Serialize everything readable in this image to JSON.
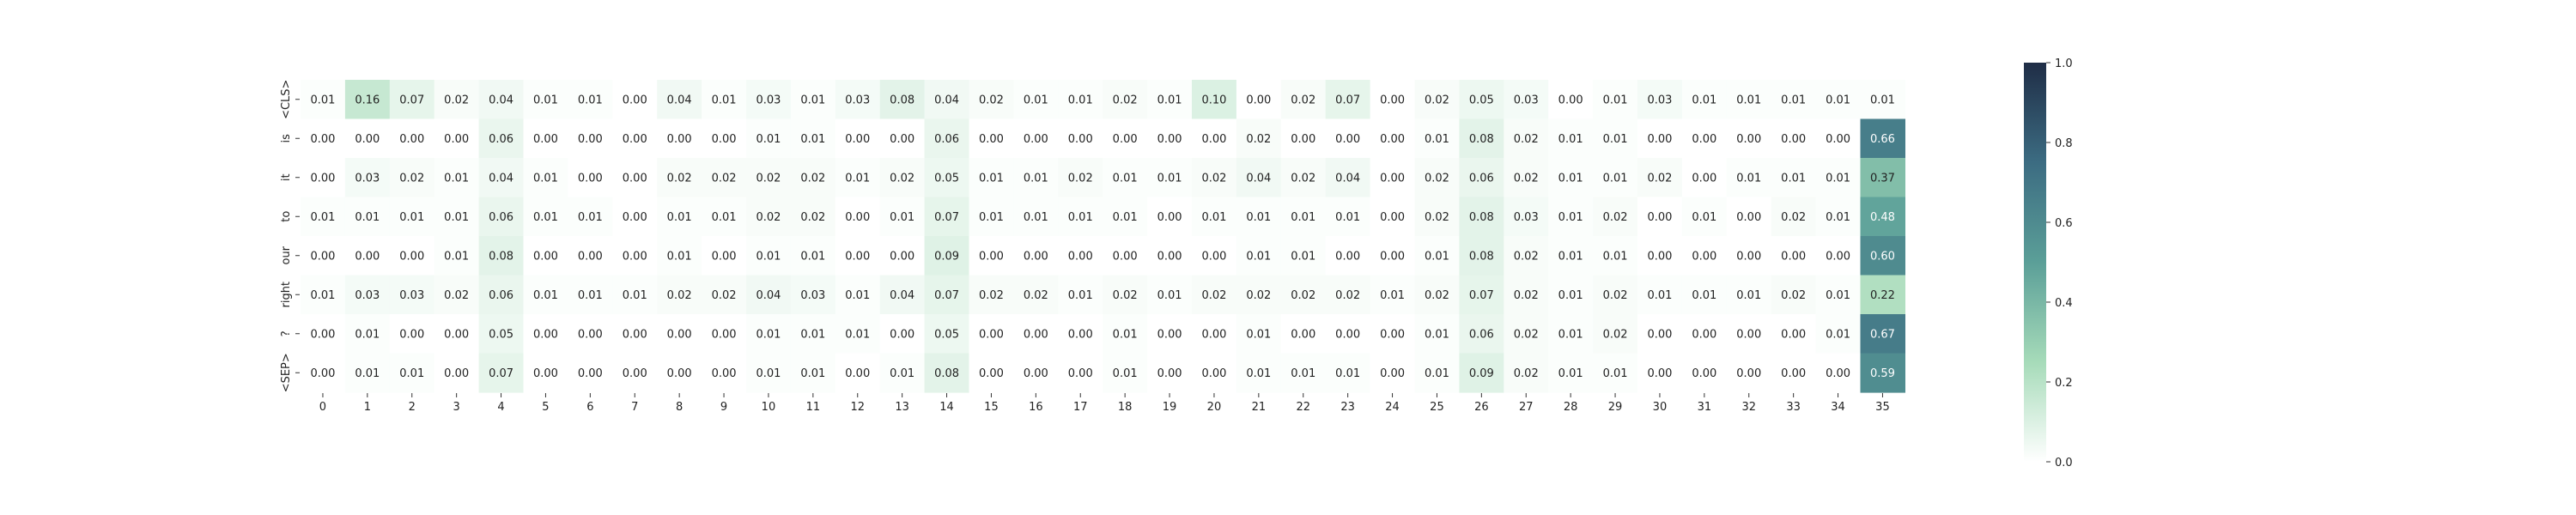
{
  "chart_data": {
    "type": "heatmap",
    "title": "",
    "xlabel": "",
    "ylabel": "",
    "x_labels": [
      "0",
      "1",
      "2",
      "3",
      "4",
      "5",
      "6",
      "7",
      "8",
      "9",
      "10",
      "11",
      "12",
      "13",
      "14",
      "15",
      "16",
      "17",
      "18",
      "19",
      "20",
      "21",
      "22",
      "23",
      "24",
      "25",
      "26",
      "27",
      "28",
      "29",
      "30",
      "31",
      "32",
      "33",
      "34",
      "35"
    ],
    "y_labels": [
      "<CLS>",
      "is",
      "it",
      "to",
      "our",
      "right",
      "?",
      "<SEP>"
    ],
    "values": [
      [
        0.01,
        0.16,
        0.07,
        0.02,
        0.04,
        0.01,
        0.01,
        0.0,
        0.04,
        0.01,
        0.03,
        0.01,
        0.03,
        0.08,
        0.04,
        0.02,
        0.01,
        0.01,
        0.02,
        0.01,
        0.1,
        0.0,
        0.02,
        0.07,
        0.0,
        0.02,
        0.05,
        0.03,
        0.0,
        0.01,
        0.03,
        0.01,
        0.01,
        0.01,
        0.01,
        0.01
      ],
      [
        0.0,
        0.0,
        0.0,
        0.0,
        0.06,
        0.0,
        0.0,
        0.0,
        0.0,
        0.0,
        0.01,
        0.01,
        0.0,
        0.0,
        0.06,
        0.0,
        0.0,
        0.0,
        0.0,
        0.0,
        0.0,
        0.02,
        0.0,
        0.0,
        0.0,
        0.01,
        0.08,
        0.02,
        0.01,
        0.01,
        0.0,
        0.0,
        0.0,
        0.0,
        0.0,
        0.66
      ],
      [
        0.0,
        0.03,
        0.02,
        0.01,
        0.04,
        0.01,
        0.0,
        0.0,
        0.02,
        0.02,
        0.02,
        0.02,
        0.01,
        0.02,
        0.05,
        0.01,
        0.01,
        0.02,
        0.01,
        0.01,
        0.02,
        0.04,
        0.02,
        0.04,
        0.0,
        0.02,
        0.06,
        0.02,
        0.01,
        0.01,
        0.02,
        0.0,
        0.01,
        0.01,
        0.01,
        0.37
      ],
      [
        0.01,
        0.01,
        0.01,
        0.01,
        0.06,
        0.01,
        0.01,
        0.0,
        0.01,
        0.01,
        0.02,
        0.02,
        0.0,
        0.01,
        0.07,
        0.01,
        0.01,
        0.01,
        0.01,
        0.0,
        0.01,
        0.01,
        0.01,
        0.01,
        0.0,
        0.02,
        0.08,
        0.03,
        0.01,
        0.02,
        0.0,
        0.01,
        0.0,
        0.02,
        0.01,
        0.48
      ],
      [
        0.0,
        0.0,
        0.0,
        0.01,
        0.08,
        0.0,
        0.0,
        0.0,
        0.01,
        0.0,
        0.01,
        0.01,
        0.0,
        0.0,
        0.09,
        0.0,
        0.0,
        0.0,
        0.0,
        0.0,
        0.0,
        0.01,
        0.01,
        0.0,
        0.0,
        0.01,
        0.08,
        0.02,
        0.01,
        0.01,
        0.0,
        0.0,
        0.0,
        0.0,
        0.0,
        0.6
      ],
      [
        0.01,
        0.03,
        0.03,
        0.02,
        0.06,
        0.01,
        0.01,
        0.01,
        0.02,
        0.02,
        0.04,
        0.03,
        0.01,
        0.04,
        0.07,
        0.02,
        0.02,
        0.01,
        0.02,
        0.01,
        0.02,
        0.02,
        0.02,
        0.02,
        0.01,
        0.02,
        0.07,
        0.02,
        0.01,
        0.02,
        0.01,
        0.01,
        0.01,
        0.02,
        0.01,
        0.22
      ],
      [
        0.0,
        0.01,
        0.0,
        0.0,
        0.05,
        0.0,
        0.0,
        0.0,
        0.0,
        0.0,
        0.01,
        0.01,
        0.01,
        0.0,
        0.05,
        0.0,
        0.0,
        0.0,
        0.01,
        0.0,
        0.0,
        0.01,
        0.0,
        0.0,
        0.0,
        0.01,
        0.06,
        0.02,
        0.01,
        0.02,
        0.0,
        0.0,
        0.0,
        0.0,
        0.01,
        0.67
      ],
      [
        0.0,
        0.01,
        0.01,
        0.0,
        0.07,
        0.0,
        0.0,
        0.0,
        0.0,
        0.0,
        0.01,
        0.01,
        0.0,
        0.01,
        0.08,
        0.0,
        0.0,
        0.0,
        0.01,
        0.0,
        0.0,
        0.01,
        0.01,
        0.01,
        0.0,
        0.01,
        0.09,
        0.02,
        0.01,
        0.01,
        0.0,
        0.0,
        0.0,
        0.0,
        0.0,
        0.59
      ]
    ],
    "value_format": "0.00",
    "colorbar": {
      "range": [
        0.0,
        1.0
      ],
      "ticks": [
        "0.0",
        "0.2",
        "0.4",
        "0.6",
        "0.8",
        "1.0"
      ],
      "tick_values": [
        0.0,
        0.2,
        0.4,
        0.6,
        0.8,
        1.0
      ],
      "stops": [
        "#ffffff",
        "#a6dbb9",
        "#5b9f98",
        "#3c6c82",
        "#1f2d46"
      ]
    },
    "legend_placement": "right"
  }
}
